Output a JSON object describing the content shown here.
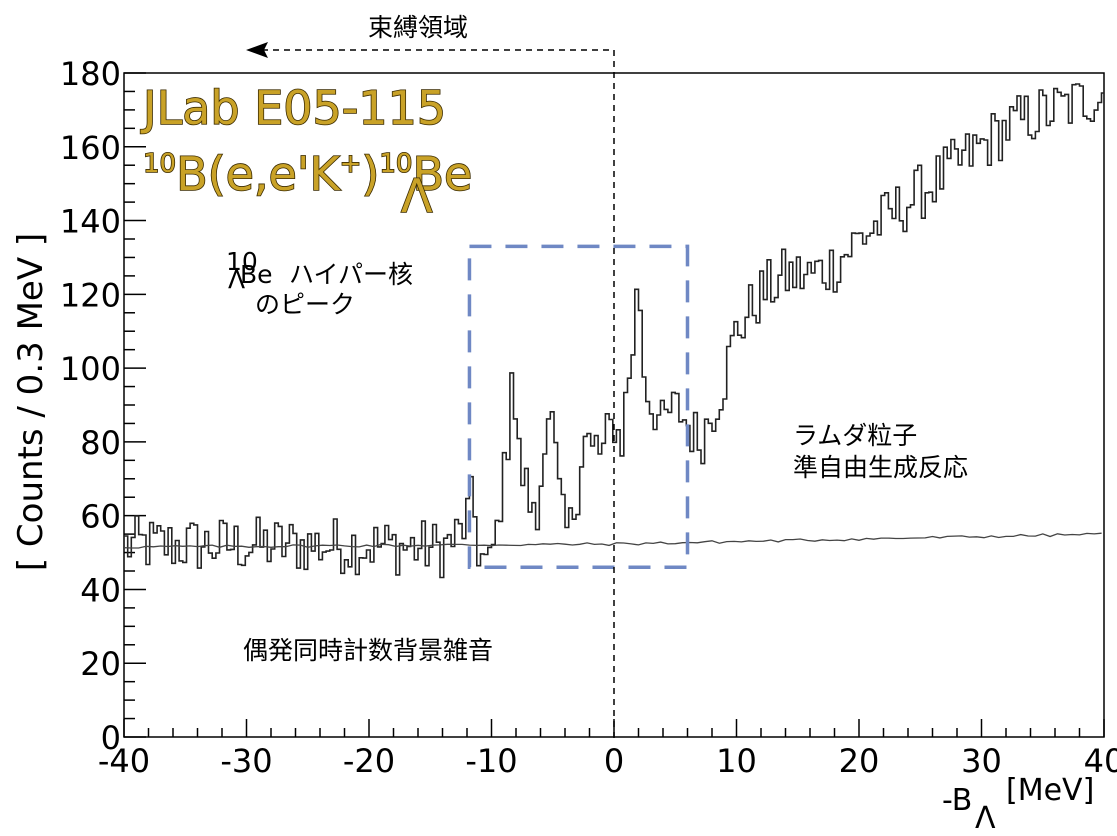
{
  "chart_data": {
    "type": "line",
    "title_line1": "JLab E05-115",
    "title_line2": {
      "target_mass": "10",
      "target": "B(e,e'K",
      "charge": "+",
      "close": ")",
      "product_mass": "10",
      "product_sub": "Λ",
      "product": "Be"
    },
    "ylabel": "[ Counts / 0.3 MeV ]",
    "xlabel": "-B",
    "xlabel_sub": "Λ",
    "xlabel_unit": "[MeV]",
    "xlim": [
      -40,
      40
    ],
    "ylim": [
      0,
      180
    ],
    "xticks": [
      -40,
      -30,
      -20,
      -10,
      0,
      10,
      20,
      30,
      40
    ],
    "yticks": [
      0,
      20,
      40,
      60,
      80,
      100,
      120,
      140,
      160,
      180
    ],
    "grid": false,
    "bin_width": 0.3,
    "annotations": {
      "bound_region": "束縛領域",
      "peak_mass": "10",
      "peak_sub": "Λ",
      "peak_nucleus": "Be",
      "peak_line1": "ハイパー核",
      "peak_line2": "のピーク",
      "qf_line1": "ラムダ粒子",
      "qf_line2": "準自由生成反応",
      "accidental": "偶発同時計数背景雑音"
    },
    "highlight_box": {
      "x": [
        -11.8,
        6.0
      ],
      "y": [
        46,
        133
      ]
    },
    "series": [
      {
        "kind": "histogram",
        "keypoints": [
          [
            -40,
            52
          ],
          [
            -30,
            52
          ],
          [
            -20,
            52
          ],
          [
            -14,
            51
          ],
          [
            -12.5,
            55
          ],
          [
            -11.5,
            64
          ],
          [
            -11,
            50
          ],
          [
            -10.2,
            46
          ],
          [
            -9.6,
            55
          ],
          [
            -9.0,
            70
          ],
          [
            -8.6,
            82
          ],
          [
            -8.3,
            106
          ],
          [
            -8.0,
            83
          ],
          [
            -7.5,
            71
          ],
          [
            -7.0,
            67
          ],
          [
            -6.6,
            60
          ],
          [
            -6.2,
            57
          ],
          [
            -5.8,
            76
          ],
          [
            -5.5,
            90
          ],
          [
            -5.0,
            85
          ],
          [
            -4.6,
            70
          ],
          [
            -4.2,
            60
          ],
          [
            -3.8,
            55
          ],
          [
            -3.5,
            58
          ],
          [
            -3.0,
            65
          ],
          [
            -2.6,
            78
          ],
          [
            -2.2,
            83
          ],
          [
            -1.8,
            76
          ],
          [
            -1.4,
            80
          ],
          [
            -1.0,
            75
          ],
          [
            -0.6,
            82
          ],
          [
            -0.2,
            84
          ],
          [
            0.2,
            85
          ],
          [
            0.6,
            78
          ],
          [
            1.0,
            93
          ],
          [
            1.3,
            99
          ],
          [
            1.7,
            110
          ],
          [
            2.0,
            128
          ],
          [
            2.4,
            100
          ],
          [
            3.0,
            90
          ],
          [
            4.0,
            85
          ],
          [
            5.0,
            90
          ],
          [
            6.0,
            85
          ],
          [
            7.0,
            80
          ],
          [
            8.0,
            88
          ],
          [
            9.0,
            97
          ],
          [
            10.0,
            110
          ],
          [
            12.0,
            120
          ],
          [
            14.0,
            125
          ],
          [
            16.0,
            125
          ],
          [
            18.0,
            128
          ],
          [
            20.0,
            135
          ],
          [
            22.0,
            140
          ],
          [
            24.0,
            145
          ],
          [
            26.0,
            150
          ],
          [
            28.0,
            155
          ],
          [
            30.0,
            160
          ],
          [
            32.0,
            165
          ],
          [
            34.0,
            168
          ],
          [
            36.0,
            170
          ],
          [
            38.0,
            172
          ],
          [
            40.0,
            175
          ]
        ],
        "noise_amplitude": 8,
        "clip_top": 180
      },
      {
        "kind": "background",
        "points": [
          [
            -40,
            51.5
          ],
          [
            0,
            52.3
          ],
          [
            40,
            55
          ]
        ]
      }
    ]
  }
}
